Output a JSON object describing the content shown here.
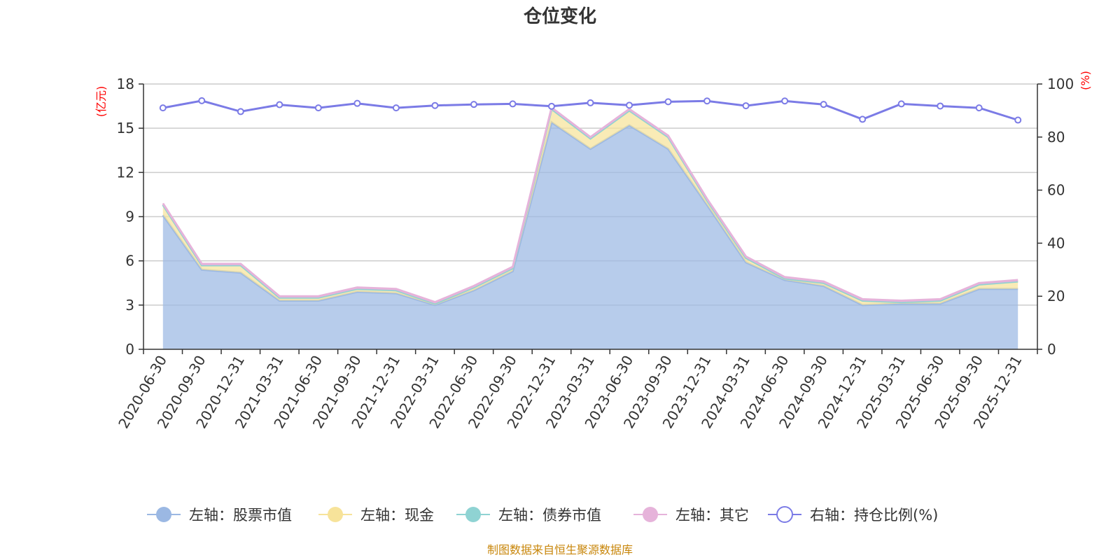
{
  "chart_data": {
    "type": "area",
    "title": "仓位变化",
    "left_unit": "(亿元)",
    "right_unit": "(%)",
    "categories": [
      "2020-06-30",
      "2020-09-30",
      "2020-12-31",
      "2021-03-31",
      "2021-06-30",
      "2021-09-30",
      "2021-12-31",
      "2022-03-31",
      "2022-06-30",
      "2022-09-30",
      "2022-12-31",
      "2023-03-31",
      "2023-06-30",
      "2023-09-30",
      "2023-12-31",
      "2024-03-31",
      "2024-06-30",
      "2024-09-30",
      "2024-12-31",
      "2025-03-31",
      "2025-06-30",
      "2025-09-30",
      "2025-12-31"
    ],
    "left_axis": {
      "min": 0,
      "max": 18,
      "ticks": [
        "0",
        "3",
        "6",
        "9",
        "12",
        "15",
        "18"
      ]
    },
    "right_axis": {
      "min": 0,
      "max": 100,
      "ticks": [
        "0",
        "20",
        "40",
        "60",
        "80",
        "100"
      ]
    },
    "series": [
      {
        "name": "左轴：股票市值",
        "axis": "left",
        "color": "#9bb8e3",
        "values": [
          9.1,
          5.4,
          5.2,
          3.3,
          3.3,
          3.9,
          3.8,
          3.0,
          4.0,
          5.3,
          15.4,
          13.6,
          15.2,
          13.6,
          9.8,
          5.9,
          4.7,
          4.3,
          3.0,
          3.1,
          3.1,
          4.1,
          4.1
        ]
      },
      {
        "name": "左轴：现金",
        "axis": "left",
        "color": "#f7e39a",
        "values": [
          0.7,
          0.3,
          0.5,
          0.2,
          0.2,
          0.2,
          0.2,
          0.1,
          0.2,
          0.2,
          0.9,
          0.7,
          1.0,
          0.8,
          0.3,
          0.3,
          0.1,
          0.2,
          0.3,
          0.1,
          0.2,
          0.3,
          0.5
        ]
      },
      {
        "name": "左轴：债券市值",
        "axis": "left",
        "color": "#8fd3d3",
        "values": [
          0,
          0,
          0,
          0,
          0,
          0,
          0,
          0,
          0,
          0,
          0,
          0,
          0,
          0,
          0,
          0,
          0,
          0,
          0,
          0,
          0,
          0,
          0
        ]
      },
      {
        "name": "左轴：其它",
        "axis": "left",
        "color": "#e6b3da",
        "values": [
          0.1,
          0.1,
          0.1,
          0.1,
          0.1,
          0.1,
          0.1,
          0.1,
          0.1,
          0.1,
          0.1,
          0.1,
          0.1,
          0.1,
          0.1,
          0.1,
          0.1,
          0.1,
          0.1,
          0.1,
          0.1,
          0.1,
          0.1
        ]
      },
      {
        "name": "右轴：持仓比例(%)",
        "axis": "right",
        "color": "#7b7be6",
        "values": [
          91.0,
          93.7,
          89.6,
          92.2,
          91.0,
          92.7,
          91.0,
          91.9,
          92.3,
          92.5,
          91.6,
          92.9,
          92.0,
          93.3,
          93.6,
          91.8,
          93.6,
          92.3,
          86.7,
          92.5,
          91.7,
          91.0,
          86.4
        ]
      }
    ],
    "grid": true,
    "legend_position": "bottom"
  },
  "source_text": "制图数据来自恒生聚源数据库"
}
